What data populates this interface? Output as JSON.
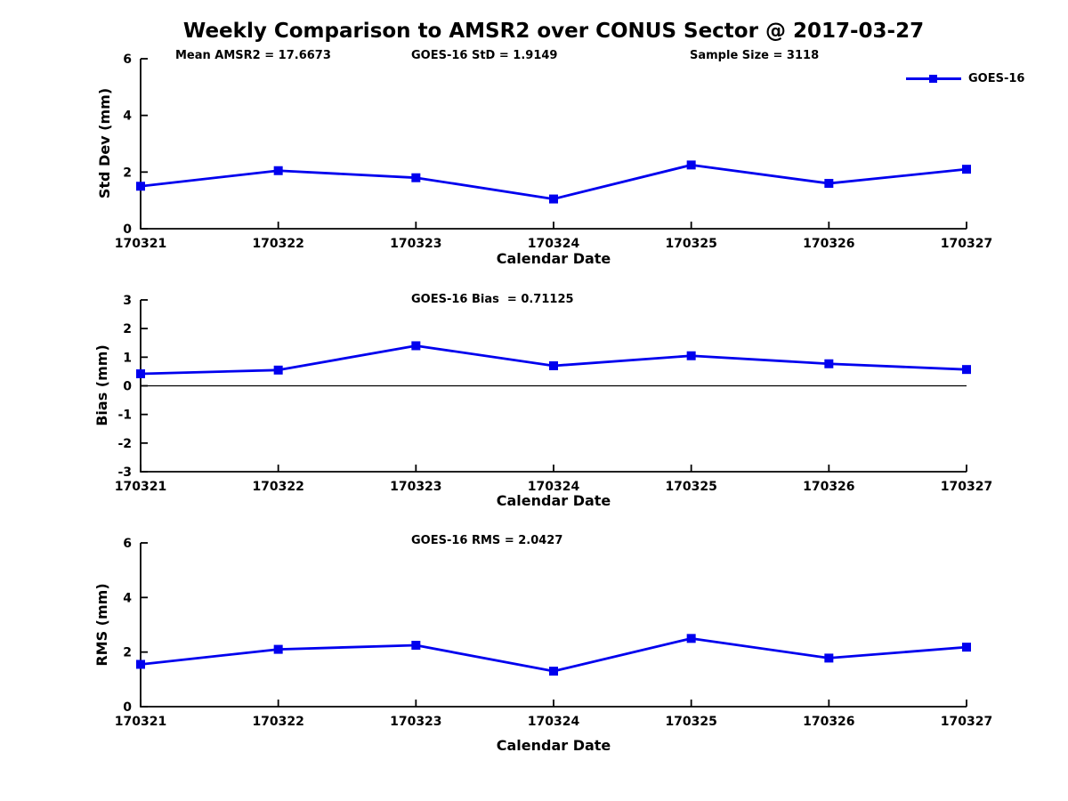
{
  "page": {
    "title": "Weekly Comparison to AMSR2 over CONUS Sector @ 2017-03-27",
    "annotations": [
      {
        "label": "Mean AMSR2 = 17.6673"
      },
      {
        "label": "GOES-16 StD = 1.9149"
      },
      {
        "label": "Sample Size = 3118"
      }
    ],
    "legend": {
      "label": "GOES-16",
      "color": "#0000EE",
      "marker": "square"
    }
  },
  "chart_data": [
    {
      "type": "line",
      "title": "",
      "xlabel": "Calendar Date",
      "ylabel": "Std Dev (mm)",
      "categories": [
        "170321",
        "170322",
        "170323",
        "170324",
        "170325",
        "170326",
        "170327"
      ],
      "series": [
        {
          "name": "GOES-16",
          "color": "#0000EE",
          "marker": "square",
          "values": [
            1.5,
            2.05,
            1.8,
            1.05,
            2.25,
            1.6,
            2.1
          ]
        }
      ],
      "ylim": [
        0,
        6
      ],
      "yticks": [
        0,
        2,
        4,
        6
      ],
      "grid": false,
      "zero_line": false,
      "legend_position": "top-right"
    },
    {
      "type": "line",
      "title": "GOES-16 Bias  = 0.71125",
      "xlabel": "Calendar Date",
      "ylabel": "Bias (mm)",
      "categories": [
        "170321",
        "170322",
        "170323",
        "170324",
        "170325",
        "170326",
        "170327"
      ],
      "series": [
        {
          "name": "GOES-16",
          "color": "#0000EE",
          "marker": "square",
          "values": [
            0.42,
            0.55,
            1.4,
            0.7,
            1.05,
            0.77,
            0.57
          ]
        }
      ],
      "ylim": [
        -3,
        3
      ],
      "yticks": [
        -3,
        -2,
        -1,
        0,
        1,
        2,
        3
      ],
      "grid": false,
      "zero_line": true,
      "legend_position": "none"
    },
    {
      "type": "line",
      "title": "GOES-16 RMS = 2.0427",
      "xlabel": "Calendar Date",
      "ylabel": "RMS (mm)",
      "categories": [
        "170321",
        "170322",
        "170323",
        "170324",
        "170325",
        "170326",
        "170327"
      ],
      "series": [
        {
          "name": "GOES-16",
          "color": "#0000EE",
          "marker": "square",
          "values": [
            1.55,
            2.1,
            2.25,
            1.3,
            2.5,
            1.78,
            2.18
          ]
        }
      ],
      "ylim": [
        0,
        6
      ],
      "yticks": [
        0,
        2,
        4,
        6
      ],
      "grid": false,
      "zero_line": false,
      "legend_position": "none"
    }
  ]
}
